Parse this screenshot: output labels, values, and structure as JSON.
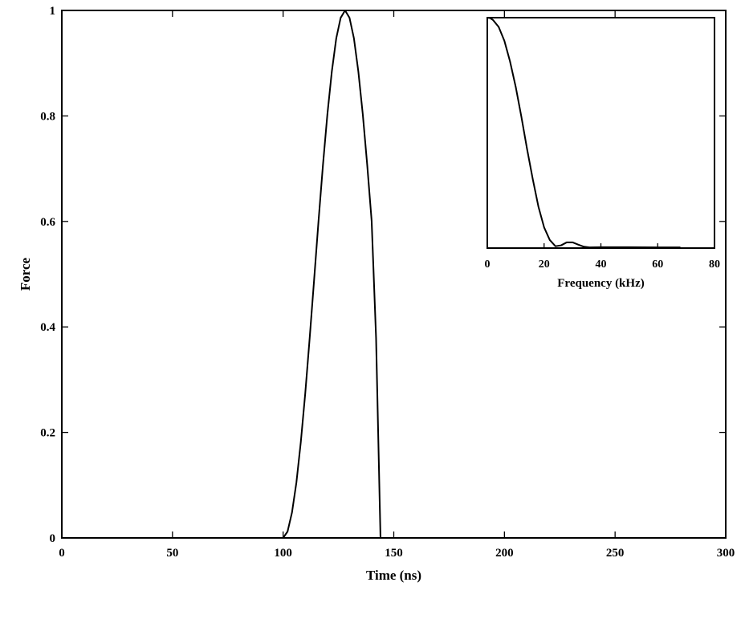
{
  "chart_data": [
    {
      "type": "line",
      "xlabel": "Time (ns)",
      "ylabel": "Force",
      "xlim": [
        0,
        300
      ],
      "ylim": [
        0,
        1
      ],
      "xticks": [
        "0",
        "50",
        "100",
        "150",
        "200",
        "250",
        "300"
      ],
      "yticks": [
        "0",
        "0.2",
        "0.4",
        "0.6",
        "0.8",
        "1"
      ],
      "grid": false,
      "series": [
        {
          "color": "#000000",
          "x": [
            0,
            100,
            102,
            104,
            106,
            108,
            110,
            112,
            114,
            116,
            118,
            120,
            122,
            124,
            126,
            128,
            130,
            132,
            134,
            136,
            138,
            140,
            142,
            144,
            300
          ],
          "y": [
            0,
            0,
            0.012,
            0.048,
            0.105,
            0.182,
            0.274,
            0.379,
            0.489,
            0.601,
            0.707,
            0.803,
            0.884,
            0.947,
            0.986,
            1.0,
            0.986,
            0.947,
            0.884,
            0.803,
            0.707,
            0.601,
            0.379,
            0,
            0
          ]
        }
      ]
    },
    {
      "type": "line",
      "role": "inset",
      "xlabel": "Frequency (kHz)",
      "ylabel": "",
      "xlim": [
        0,
        80
      ],
      "ylim": [
        0,
        1
      ],
      "xticks": [
        "0",
        "20",
        "40",
        "60",
        "80"
      ],
      "yticks": [],
      "grid": false,
      "series": [
        {
          "color": "#000000",
          "x": [
            0,
            1,
            2,
            4,
            6,
            8,
            10,
            12,
            14,
            16,
            18,
            20,
            22,
            24,
            26,
            28,
            30,
            32,
            34,
            36,
            40,
            50,
            60,
            68
          ],
          "y": [
            1.0,
            0.998,
            0.99,
            0.96,
            0.9,
            0.81,
            0.7,
            0.57,
            0.43,
            0.3,
            0.18,
            0.09,
            0.035,
            0.008,
            0.012,
            0.025,
            0.025,
            0.015,
            0.006,
            0.003,
            0.004,
            0.004,
            0.003,
            0.003
          ]
        }
      ]
    }
  ]
}
